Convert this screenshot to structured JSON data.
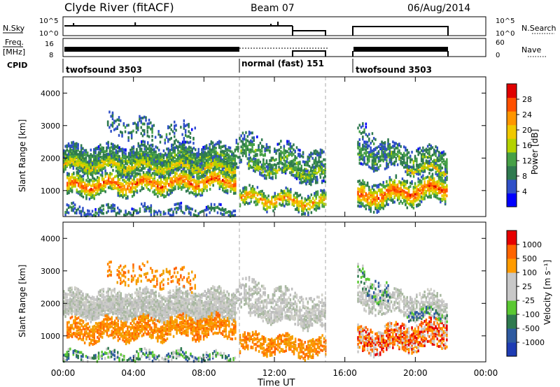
{
  "header": {
    "station": "Clyde River (fitACF)",
    "beam": "Beam 07",
    "date": "06/Aug/2014"
  },
  "panels": {
    "nsky": {
      "label": "N.Sky",
      "ticks": [
        "10^5",
        "10^0"
      ],
      "right_ticks": [
        "10^5",
        "10^0"
      ],
      "right_label": "N.Search"
    },
    "freq": {
      "label_top": "Freq.",
      "label_bottom": "[MHz]",
      "ticks": [
        "16",
        "8"
      ],
      "right_ticks": [
        "60",
        "0"
      ],
      "right_label": "Nave"
    },
    "cpid": {
      "label": "CPID",
      "segments": [
        "twofsound 3503",
        "normal (fast) 151",
        "twofsound 3503"
      ]
    }
  },
  "colors": {
    "power_scale": [
      "#0000ff",
      "#3050c8",
      "#2f7a4f",
      "#46a046",
      "#b4d200",
      "#f0c800",
      "#ff9600",
      "#ff5000",
      "#e00000"
    ],
    "velocity_scale": [
      "#1e3cb4",
      "#2e5aa0",
      "#2f7a4f",
      "#5ac832",
      "#c8c8c8",
      "#c8c8c8",
      "#ff9b00",
      "#ff6400",
      "#e60000"
    ],
    "background": "#ffffff"
  },
  "chart_data": [
    {
      "type": "heatmap",
      "name": "power",
      "ylabel": "Slant Range [km]",
      "yticks": [
        "1000",
        "2000",
        "3000",
        "4000"
      ],
      "ylim": [
        200,
        4500
      ],
      "xlim_hours": [
        0,
        24
      ],
      "colorbar_label": "Power [dB]",
      "colorbar_ticks": [
        "4",
        "8",
        "12",
        "16",
        "20",
        "24",
        "28"
      ],
      "colorbar_range": [
        0,
        32
      ],
      "data_gaps_hours": [
        [
          15.0,
          16.7
        ],
        [
          21.8,
          24.0
        ]
      ]
    },
    {
      "type": "heatmap",
      "name": "velocity",
      "ylabel": "Slant Range [km]",
      "yticks": [
        "1000",
        "2000",
        "3000",
        "4000"
      ],
      "ylim": [
        200,
        4500
      ],
      "xlim_hours": [
        0,
        24
      ],
      "colorbar_label": "Velocity [m s⁻¹]",
      "colorbar_ticks": [
        "1000",
        "500",
        "100",
        "25",
        "-25",
        "-100",
        "-500",
        "-1000"
      ],
      "data_gaps_hours": [
        [
          15.0,
          16.7
        ],
        [
          21.8,
          24.0
        ]
      ]
    }
  ],
  "x_axis": {
    "label": "Time UT",
    "ticks": [
      "00:00",
      "04:00",
      "08:00",
      "12:00",
      "16:00",
      "20:00",
      "00:00"
    ]
  }
}
